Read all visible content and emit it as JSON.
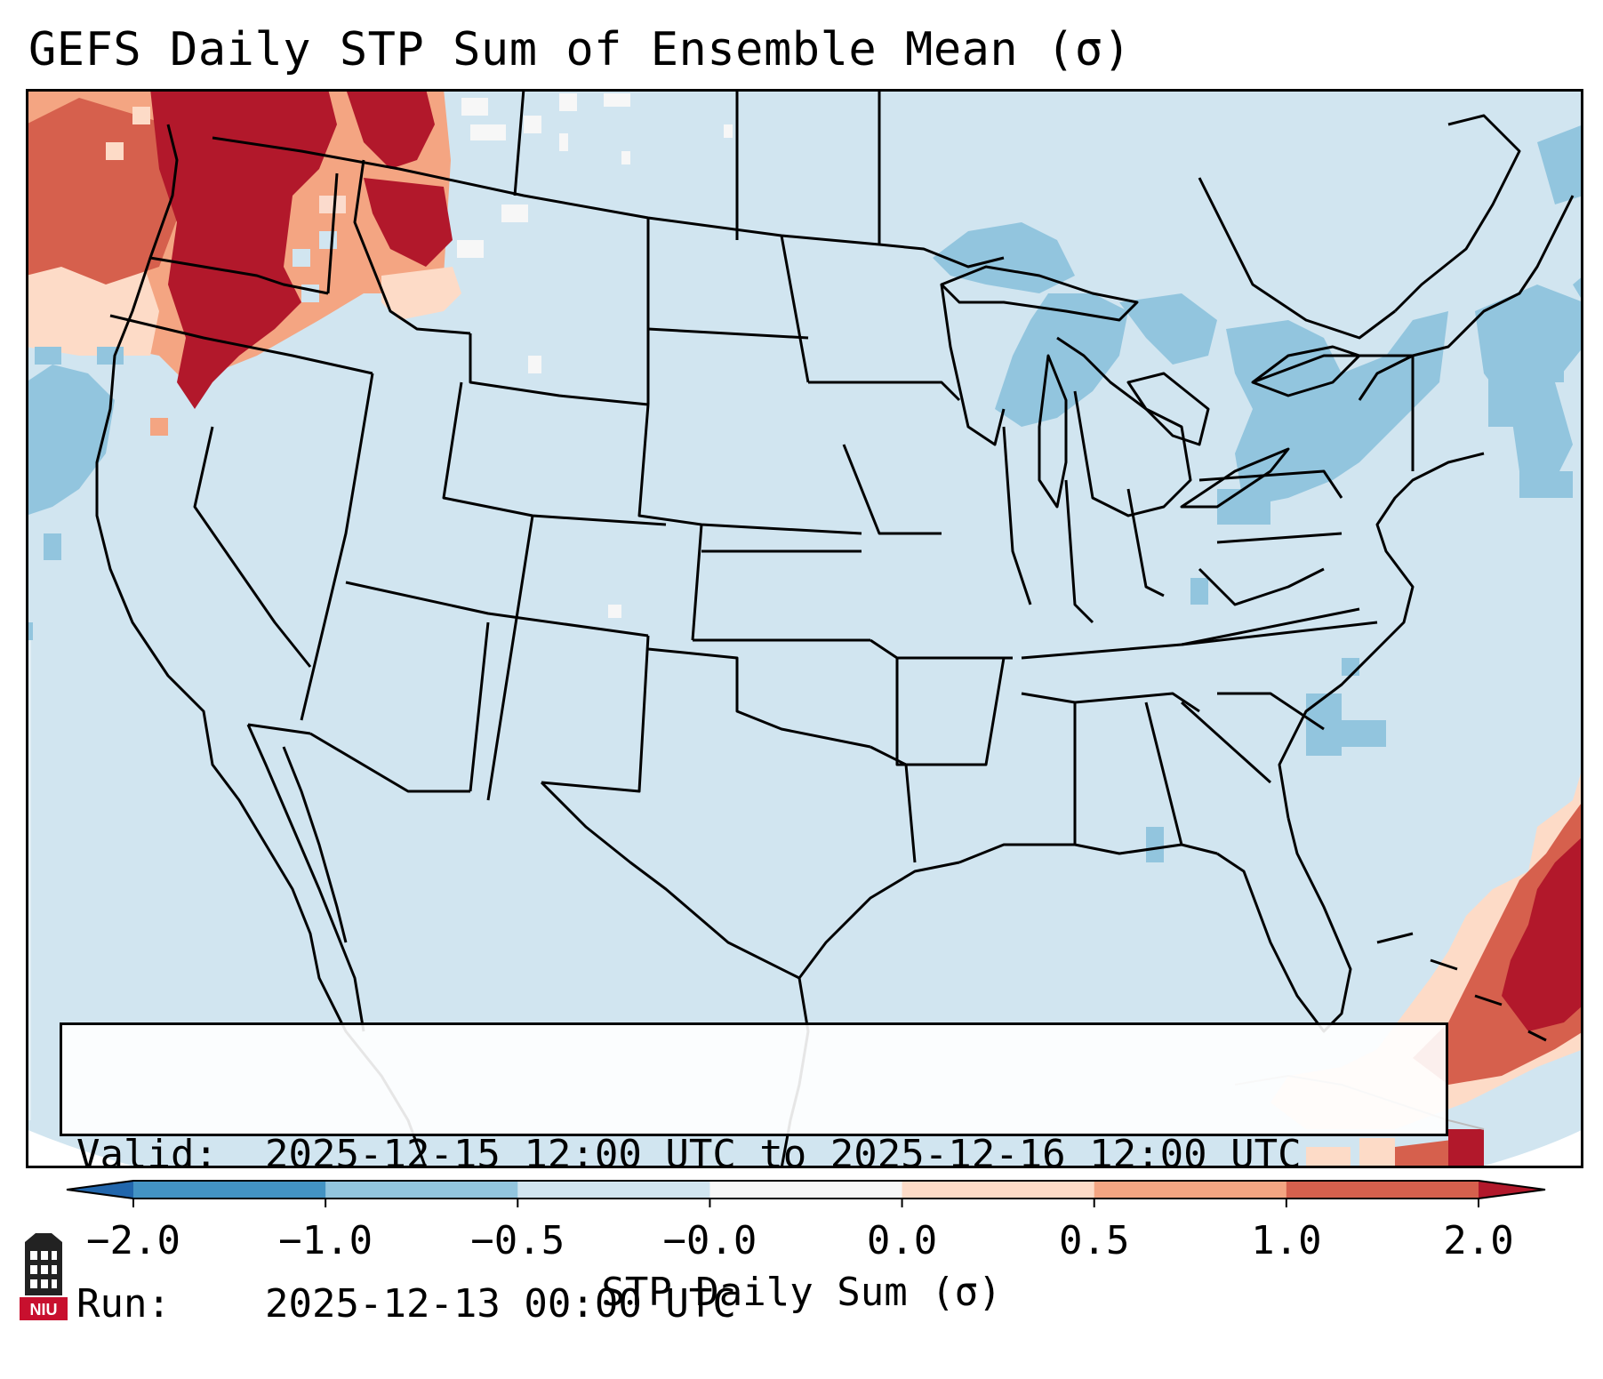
{
  "title": "GEFS Daily STP Sum of Ensemble Mean (σ)",
  "info": {
    "valid_label": "Valid:",
    "valid_value": "2025-12-15 12:00 UTC to 2025-12-16 12:00 UTC",
    "run_label": "Run:",
    "run_value": "2025-12-13 00:00 UTC"
  },
  "colorbar": {
    "label": "STP Daily Sum (σ)",
    "ticks": [
      "−2.0",
      "−1.0",
      "−0.5",
      "−0.0",
      "0.0",
      "0.5",
      "1.0",
      "2.0"
    ],
    "bins": [
      {
        "from": "−2.0",
        "to": "−1.0",
        "color": "#4393c3"
      },
      {
        "from": "−1.0",
        "to": "−0.5",
        "color": "#92c5de"
      },
      {
        "from": "−0.5",
        "to": "−0.0",
        "color": "#d1e5f0"
      },
      {
        "from": "−0.0",
        "to": "0.0",
        "color": "#f7f7f7"
      },
      {
        "from": "0.0",
        "to": "0.5",
        "color": "#fddbc7"
      },
      {
        "from": "0.5",
        "to": "1.0",
        "color": "#f4a582"
      },
      {
        "from": "1.0",
        "to": "2.0",
        "color": "#d6604d"
      }
    ],
    "under_color": "#2166ac",
    "over_color": "#b2182b",
    "extend": "both"
  },
  "map": {
    "projection": "Lambert conformal, CONUS",
    "background_value_color": "#d1e5f0",
    "outside_domain_color": "#ffffff",
    "boundary_color": "#000000",
    "high_value_regions": [
      "Pacific Northwest",
      "Caribbean / Hispaniola"
    ],
    "low_value_regions": [
      "Great Lakes",
      "Northeast",
      "Western Atlantic"
    ]
  },
  "logo": {
    "text": "NIU",
    "color": "#c8102e"
  }
}
